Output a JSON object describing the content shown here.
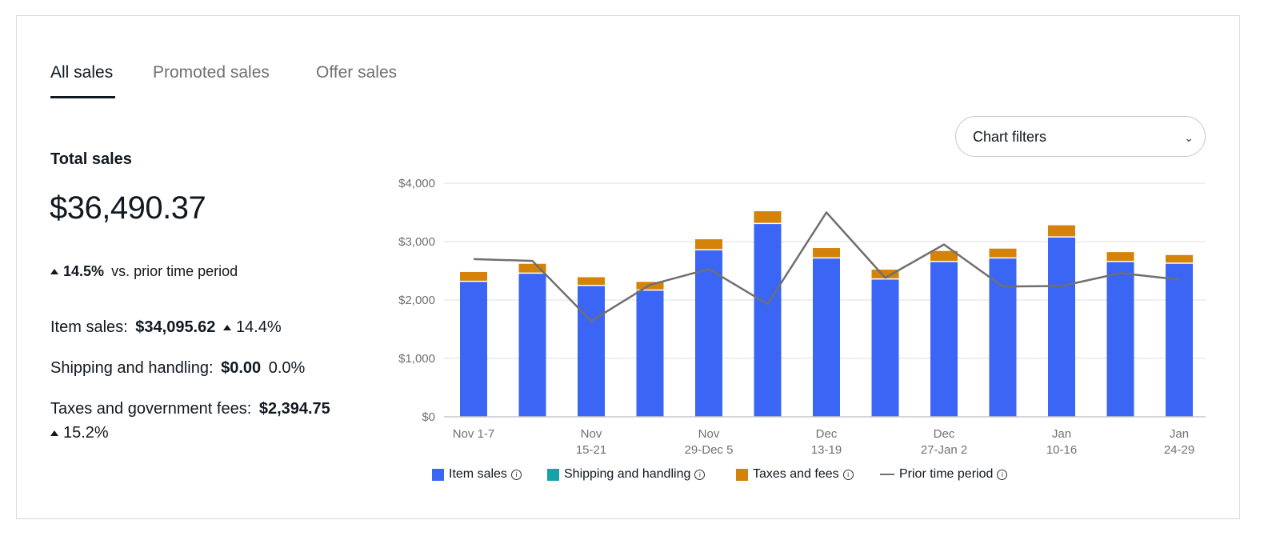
{
  "tabs": [
    {
      "label": "All sales",
      "active": true
    },
    {
      "label": "Promoted sales",
      "active": false
    },
    {
      "label": "Offer sales",
      "active": false
    }
  ],
  "summary": {
    "title": "Total sales",
    "total": "$36,490.37",
    "change_pct": "14.5%",
    "change_text": "vs. prior time period",
    "item_sales_label": "Item sales:",
    "item_sales_value": "$34,095.62",
    "item_sales_change": "14.4%",
    "shipping_label": "Shipping and handling:",
    "shipping_value": "$0.00",
    "shipping_change": "0.0%",
    "taxes_label": "Taxes and government fees:",
    "taxes_value": "$2,394.75",
    "taxes_change": "15.2%"
  },
  "filters": {
    "label": "Chart filters"
  },
  "legend": {
    "item_sales": "Item sales",
    "shipping": "Shipping and handling",
    "taxes": "Taxes and fees",
    "prior": "Prior time period"
  },
  "colors": {
    "item_sales": "#3b65f5",
    "shipping": "#14a3a8",
    "taxes": "#d4820a",
    "prior": "#6f6f6f"
  },
  "chart_data": {
    "type": "bar",
    "stacked": true,
    "y_ticks": [
      "$4,000",
      "$3,000",
      "$2,000",
      "$1,000",
      "$0"
    ],
    "ylim": [
      0,
      4000
    ],
    "x_labels": [
      [
        "Nov 1-7"
      ],
      [],
      [
        "Nov",
        "15-21"
      ],
      [],
      [
        "Nov",
        "29-Dec 5"
      ],
      [],
      [
        "Dec",
        "13-19"
      ],
      [],
      [
        "Dec",
        "27-Jan 2"
      ],
      [],
      [
        "Jan",
        "10-16"
      ],
      [],
      [
        "Jan",
        "24-29"
      ]
    ],
    "series": [
      {
        "name": "Item sales",
        "values": [
          2310,
          2450,
          2240,
          2160,
          2850,
          3300,
          2710,
          2350,
          2650,
          2710,
          3070,
          2650,
          2620
        ]
      },
      {
        "name": "Shipping and handling",
        "values": [
          0,
          0,
          0,
          0,
          0,
          0,
          0,
          0,
          0,
          0,
          0,
          0,
          0
        ]
      },
      {
        "name": "Taxes and fees",
        "values": [
          170,
          170,
          150,
          150,
          190,
          220,
          180,
          170,
          190,
          170,
          210,
          170,
          150
        ]
      }
    ],
    "line": {
      "name": "Prior time period",
      "values": [
        2700,
        2670,
        1640,
        2260,
        2530,
        1930,
        3500,
        2380,
        2950,
        2230,
        2240,
        2460,
        2350
      ]
    },
    "grid": true
  }
}
